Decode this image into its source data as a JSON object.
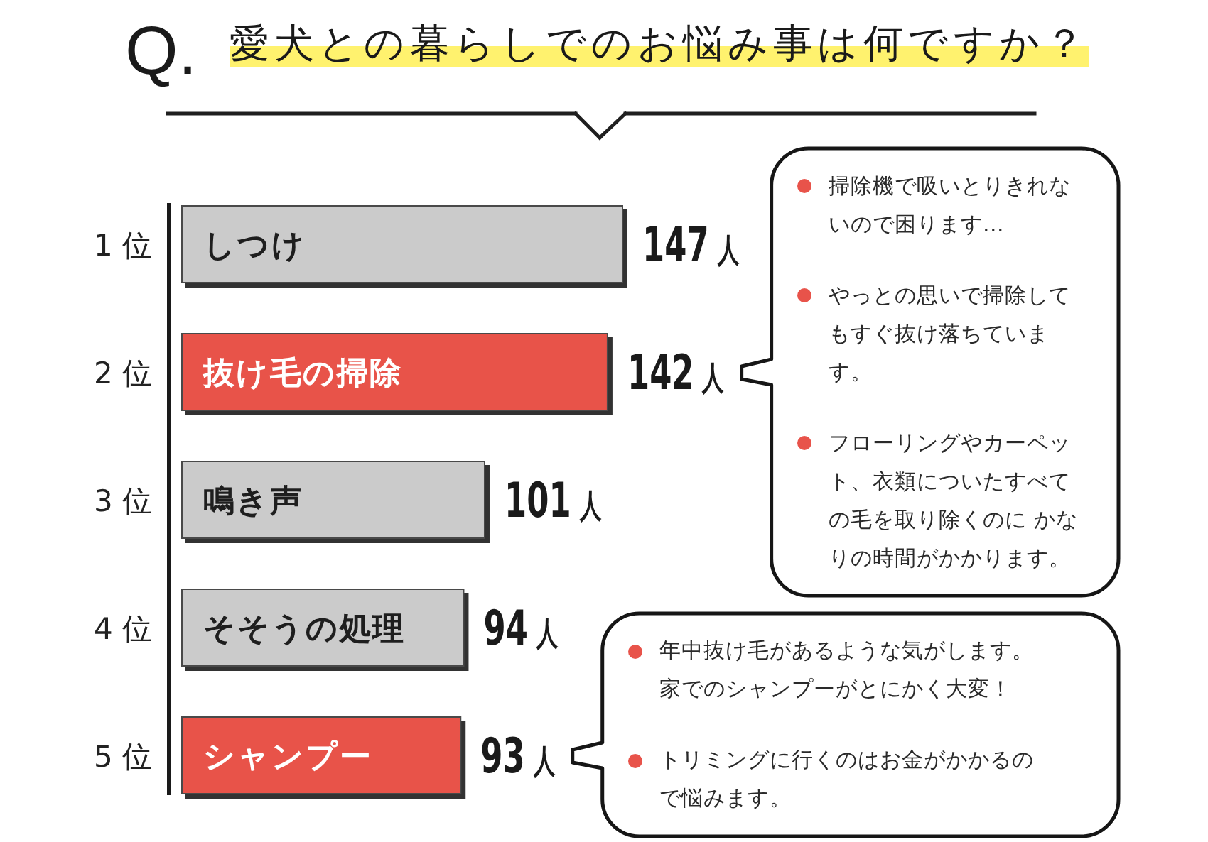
{
  "chart_data": {
    "type": "bar",
    "orientation": "horizontal",
    "title": "Q. 愛犬との暮らしでのお悩み事は何ですか？",
    "categories": [
      "しつけ",
      "抜け毛の掃除",
      "鳴き声",
      "そそうの処理",
      "シャンプー"
    ],
    "values": [
      147,
      142,
      101,
      94,
      93
    ],
    "colors": [
      "#cbcbcb",
      "#e8534a",
      "#cbcbcb",
      "#cbcbcb",
      "#e8534a"
    ],
    "value_labels": [
      "147人",
      "142人",
      "101人",
      "94人",
      "93人"
    ],
    "tick_labels": "y",
    "annotations": [
      "1 位",
      "2 位",
      "3 位",
      "4 位",
      "5 位",
      "掃除機で吸いとりきれないので困ります…",
      "やっとの思いで掃除してもすぐ抜け落ちています。",
      "フローリングやカーペット、衣類についたすべての毛を取り除くのに かなりの時間がかかります。",
      "年中抜け毛があるような気がします。家でのシャンプーがとにかく大変！",
      "トリミングに行くのはお金がかかるので悩みます。"
    ]
  }
}
